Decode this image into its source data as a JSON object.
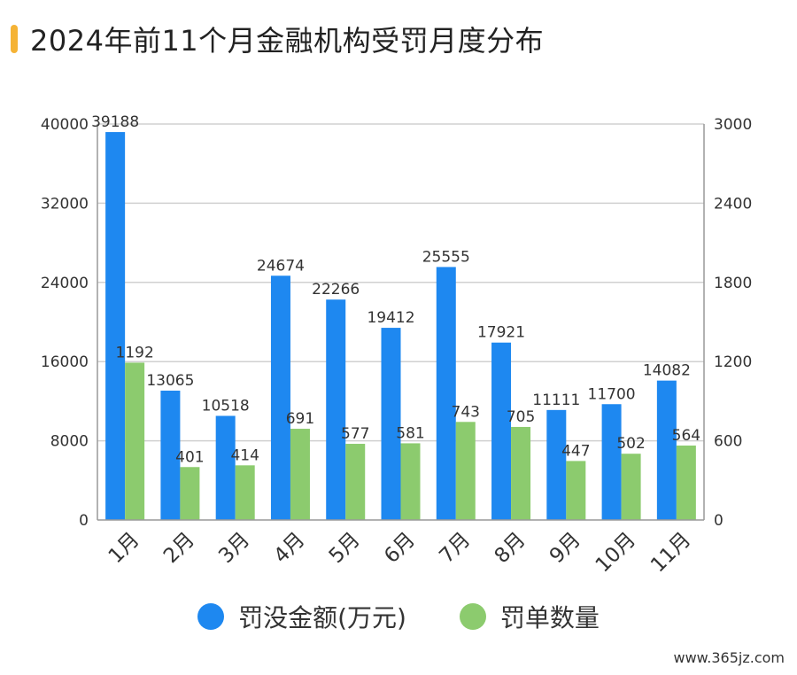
{
  "colors": {
    "title_accent": "#F5B335",
    "series_amount": "#1E88F0",
    "series_count": "#8CCB6E",
    "grid": "#D0D0D0",
    "axis": "#999999"
  },
  "chart_data": {
    "type": "bar",
    "title": "2024年前11个月金融机构受罚月度分布",
    "categories": [
      "1月",
      "2月",
      "3月",
      "4月",
      "5月",
      "6月",
      "7月",
      "8月",
      "9月",
      "10月",
      "11月"
    ],
    "series": [
      {
        "name": "罚没金额(万元)",
        "axis": "left",
        "values": [
          39188,
          13065,
          10518,
          24674,
          22266,
          19412,
          25555,
          17921,
          11111,
          11700,
          14082
        ]
      },
      {
        "name": "罚单数量",
        "axis": "right",
        "values": [
          1192,
          401,
          414,
          691,
          577,
          581,
          743,
          705,
          447,
          502,
          564
        ]
      }
    ],
    "y_left": {
      "range": [
        0,
        40000
      ],
      "ticks": [
        "0",
        "8000",
        "16000",
        "24000",
        "32000",
        "40000"
      ]
    },
    "y_right": {
      "range": [
        0,
        3000
      ],
      "ticks": [
        "0",
        "600",
        "1200",
        "1800",
        "2400",
        "3000"
      ]
    },
    "grid": true,
    "legend_position": "bottom"
  },
  "watermark": "www.365jz.com"
}
